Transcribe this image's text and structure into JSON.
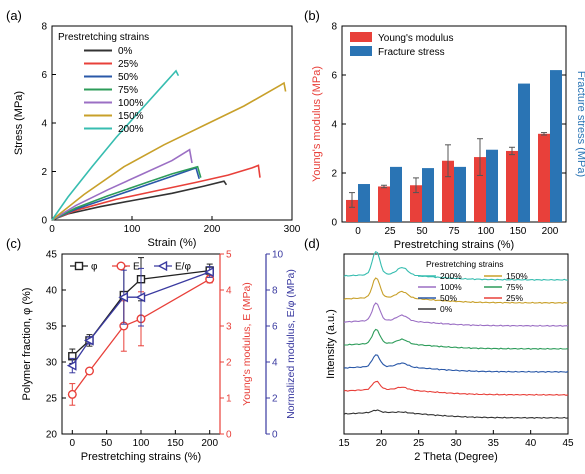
{
  "panels": {
    "a": {
      "label": "(a)"
    },
    "b": {
      "label": "(b)"
    },
    "c": {
      "label": "(c)"
    },
    "d": {
      "label": "(d)"
    }
  },
  "chart_data": [
    {
      "id": "a",
      "type": "line",
      "xlabel": "Strain (%)",
      "ylabel": "Stress (MPa)",
      "xlim": [
        0,
        300
      ],
      "ylim": [
        0,
        8
      ],
      "xticks": [
        0,
        100,
        200,
        300
      ],
      "yticks": [
        0,
        2,
        4,
        6,
        8
      ],
      "legend_title": "Prestretching strains",
      "legend_position": "top-left",
      "series": [
        {
          "name": "0%",
          "color": "#333333",
          "x": [
            0,
            20,
            60,
            100,
            150,
            190,
            215,
            218
          ],
          "y": [
            0,
            0.25,
            0.55,
            0.8,
            1.1,
            1.4,
            1.6,
            1.45
          ]
        },
        {
          "name": "25%",
          "color": "#e8403a",
          "x": [
            0,
            30,
            80,
            130,
            180,
            220,
            250,
            258,
            260
          ],
          "y": [
            0,
            0.4,
            0.85,
            1.2,
            1.55,
            1.85,
            2.15,
            2.25,
            1.75
          ]
        },
        {
          "name": "50%",
          "color": "#2a58a8",
          "x": [
            0,
            30,
            70,
            110,
            150,
            180,
            184
          ],
          "y": [
            0,
            0.45,
            0.9,
            1.35,
            1.8,
            2.15,
            1.7
          ]
        },
        {
          "name": "75%",
          "color": "#2d9c5a",
          "x": [
            0,
            30,
            70,
            110,
            150,
            182,
            186
          ],
          "y": [
            0,
            0.5,
            1.0,
            1.45,
            1.9,
            2.2,
            1.75
          ]
        },
        {
          "name": "100%",
          "color": "#9b6fc4",
          "x": [
            0,
            30,
            70,
            110,
            150,
            172,
            175
          ],
          "y": [
            0,
            0.6,
            1.25,
            1.85,
            2.45,
            2.9,
            2.35
          ]
        },
        {
          "name": "150%",
          "color": "#c8a02a",
          "x": [
            0,
            40,
            90,
            140,
            190,
            240,
            285,
            290,
            292
          ],
          "y": [
            0,
            1.05,
            2.2,
            3.1,
            3.9,
            4.7,
            5.55,
            5.65,
            5.3
          ]
        },
        {
          "name": "200%",
          "color": "#37bdb0",
          "x": [
            0,
            20,
            50,
            80,
            110,
            140,
            155,
            158
          ],
          "y": [
            0,
            0.95,
            2.2,
            3.4,
            4.5,
            5.6,
            6.15,
            5.95
          ]
        }
      ]
    },
    {
      "id": "b",
      "type": "bar",
      "xlabel": "Prestretching strains (%)",
      "ylabel": "Young's modulus (MPa)",
      "ylabel_right": "Fracture stress (MPa)",
      "categories": [
        "0",
        "25",
        "50",
        "75",
        "100",
        "150",
        "200"
      ],
      "ylim": [
        0,
        8
      ],
      "yticks": [
        0,
        2,
        4,
        6,
        8
      ],
      "legend_position": "top-left",
      "series": [
        {
          "name": "Young's modulus",
          "color": "#e8403a",
          "values": [
            0.9,
            1.45,
            1.5,
            2.5,
            2.65,
            2.9,
            3.6
          ],
          "errors": [
            0.3,
            0.05,
            0.3,
            0.65,
            0.75,
            0.15,
            0.05
          ]
        },
        {
          "name": "Fracture stress",
          "color": "#2a74b4",
          "values": [
            1.55,
            2.25,
            2.2,
            2.25,
            2.95,
            5.65,
            6.2
          ],
          "errors": [
            0,
            0,
            0,
            0,
            0,
            0,
            0
          ]
        }
      ]
    },
    {
      "id": "c",
      "type": "line",
      "xlabel": "Prestretching strains (%)",
      "ylabel": "Polymer fraction, φ (%)",
      "ylabel_right1": "Young's modulus, E (MPa)",
      "ylabel_right2": "Normalized modulus, E/φ (MPa)",
      "xlim": [
        -15,
        215
      ],
      "ylim": [
        20,
        45
      ],
      "ylim_right1": [
        0,
        5
      ],
      "ylim_right2": [
        0,
        10
      ],
      "xticks": [
        0,
        50,
        100,
        150,
        200
      ],
      "yticks": [
        20,
        25,
        30,
        35,
        40,
        45
      ],
      "yticks_right1": [
        0,
        1,
        2,
        3,
        4,
        5
      ],
      "yticks_right2": [
        0,
        2,
        4,
        6,
        8,
        10
      ],
      "legend_position": "top",
      "series": [
        {
          "name": "φ",
          "color": "#222222",
          "marker": "square",
          "axis": "left",
          "x": [
            0,
            25,
            75,
            100,
            200
          ],
          "y": [
            30.8,
            33.0,
            39.3,
            41.5,
            42.7
          ],
          "errors": [
            1.0,
            0.8,
            4.0,
            3.0,
            0.9
          ]
        },
        {
          "name": "E",
          "color": "#e8403a",
          "marker": "circle",
          "axis": "right1",
          "x": [
            0,
            25,
            75,
            100,
            200
          ],
          "y": [
            1.1,
            1.75,
            3.0,
            3.2,
            4.3
          ],
          "errors": [
            0.3,
            0.05,
            0.7,
            0.75,
            0.1
          ]
        },
        {
          "name": "E/φ",
          "color": "#3a3aa0",
          "marker": "triangle-left",
          "axis": "right2",
          "x": [
            0,
            25,
            75,
            100,
            200
          ],
          "y": [
            3.8,
            5.2,
            7.6,
            7.6,
            9.0
          ],
          "errors": [
            0.4,
            0.2,
            1.5,
            1.6,
            0.3
          ]
        }
      ]
    },
    {
      "id": "d",
      "type": "line",
      "xlabel": "2 Theta (Degree)",
      "ylabel": "Intensity (a.u.)",
      "xlim": [
        15,
        45
      ],
      "xticks": [
        15,
        20,
        25,
        30,
        35,
        40,
        45
      ],
      "legend_title": "Prestretching strains",
      "legend_position": "top-right",
      "series": [
        {
          "name": "200%",
          "color": "#37bdb0",
          "offset": 6,
          "peak": 1.0
        },
        {
          "name": "150%",
          "color": "#c8a02a",
          "offset": 5,
          "peak": 0.85
        },
        {
          "name": "100%",
          "color": "#9b6fc4",
          "offset": 4,
          "peak": 0.75
        },
        {
          "name": "75%",
          "color": "#2d9c5a",
          "offset": 3,
          "peak": 0.6
        },
        {
          "name": "50%",
          "color": "#2a58a8",
          "offset": 2,
          "peak": 0.5
        },
        {
          "name": "25%",
          "color": "#e8403a",
          "offset": 1,
          "peak": 0.35
        },
        {
          "name": "0%",
          "color": "#333333",
          "offset": 0,
          "peak": 0.1
        }
      ]
    }
  ]
}
